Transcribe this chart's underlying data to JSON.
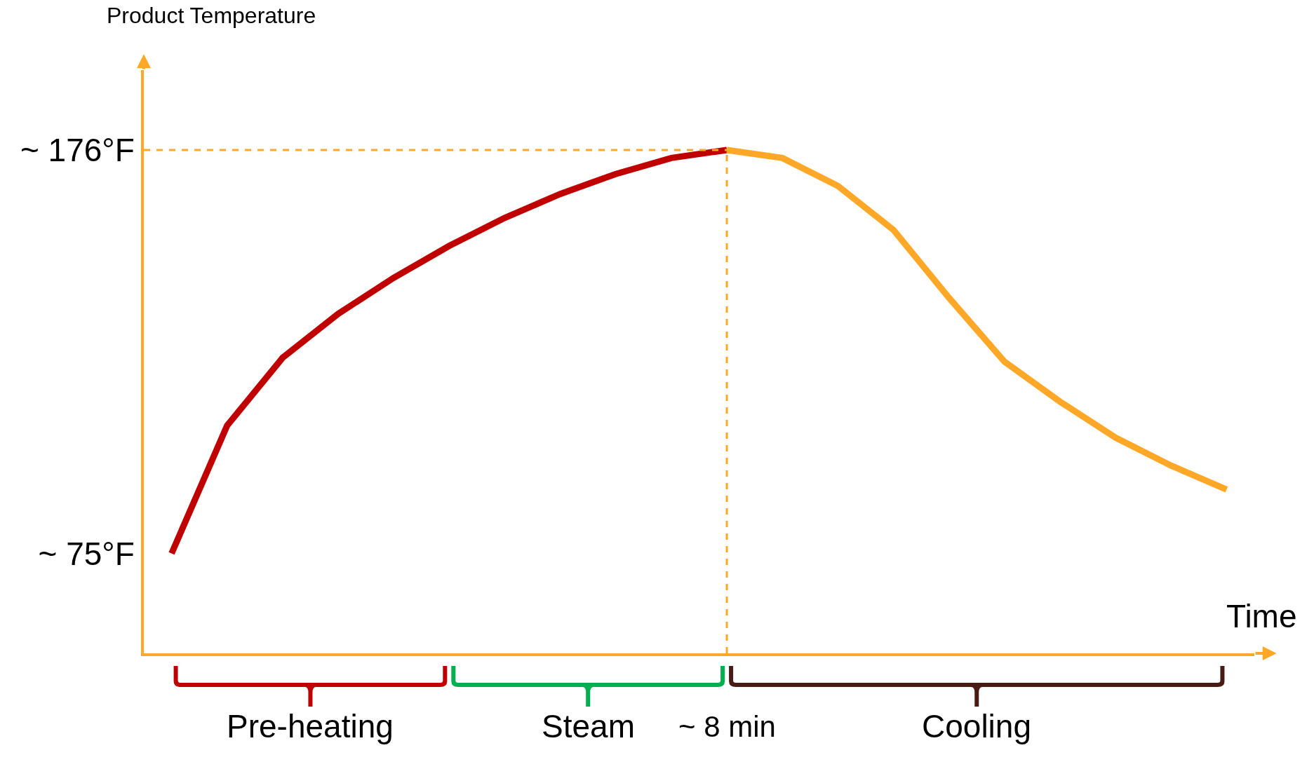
{
  "chart_data": {
    "type": "line",
    "ylabel": "Product Temperature",
    "categories": [
      null,
      null,
      null,
      null,
      null,
      null,
      null,
      null,
      null,
      null,
      null,
      null,
      null,
      null,
      null,
      null,
      null,
      null,
      null,
      null
    ],
    "ylim": [
      50,
      196
    ],
    "yticks": [
      {
        "value": 75,
        "label": "~ 75°F"
      },
      {
        "value": 176,
        "label": "~ 176°F"
      }
    ],
    "tick_labels": "y",
    "grid": false,
    "marker": "none",
    "line_style": "solid",
    "series": [
      {
        "color": "#c00000",
        "values": [
          75,
          107,
          124,
          135,
          144,
          152,
          159,
          165,
          170,
          174,
          176,
          null,
          null,
          null,
          null,
          null,
          null,
          null,
          null,
          null
        ]
      },
      {
        "color": "#ffa726",
        "values": [
          null,
          null,
          null,
          null,
          null,
          null,
          null,
          null,
          null,
          null,
          176,
          174,
          167,
          156,
          139,
          123,
          113,
          104,
          97,
          91
        ]
      }
    ],
    "ref_lines": [
      {
        "axis": "y",
        "value": 176,
        "label": null,
        "color": "#ffa726",
        "line_style": "dashed"
      }
    ],
    "annotations": [
      "Pre-heating",
      "Steam",
      "Cooling",
      "~ 8 min",
      "Time"
    ]
  }
}
